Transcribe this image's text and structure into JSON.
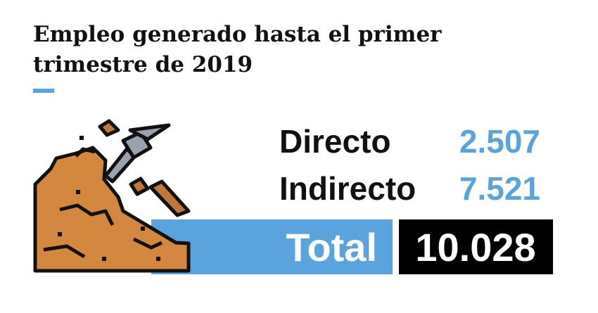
{
  "header": {
    "title": "Empleo generado hasta el primer trimestre de 2019"
  },
  "rows": [
    {
      "label": "Directo",
      "value": "2.507"
    },
    {
      "label": "Indirecto",
      "value": "7.521"
    }
  ],
  "total": {
    "label": "Total",
    "value": "10.028"
  }
}
